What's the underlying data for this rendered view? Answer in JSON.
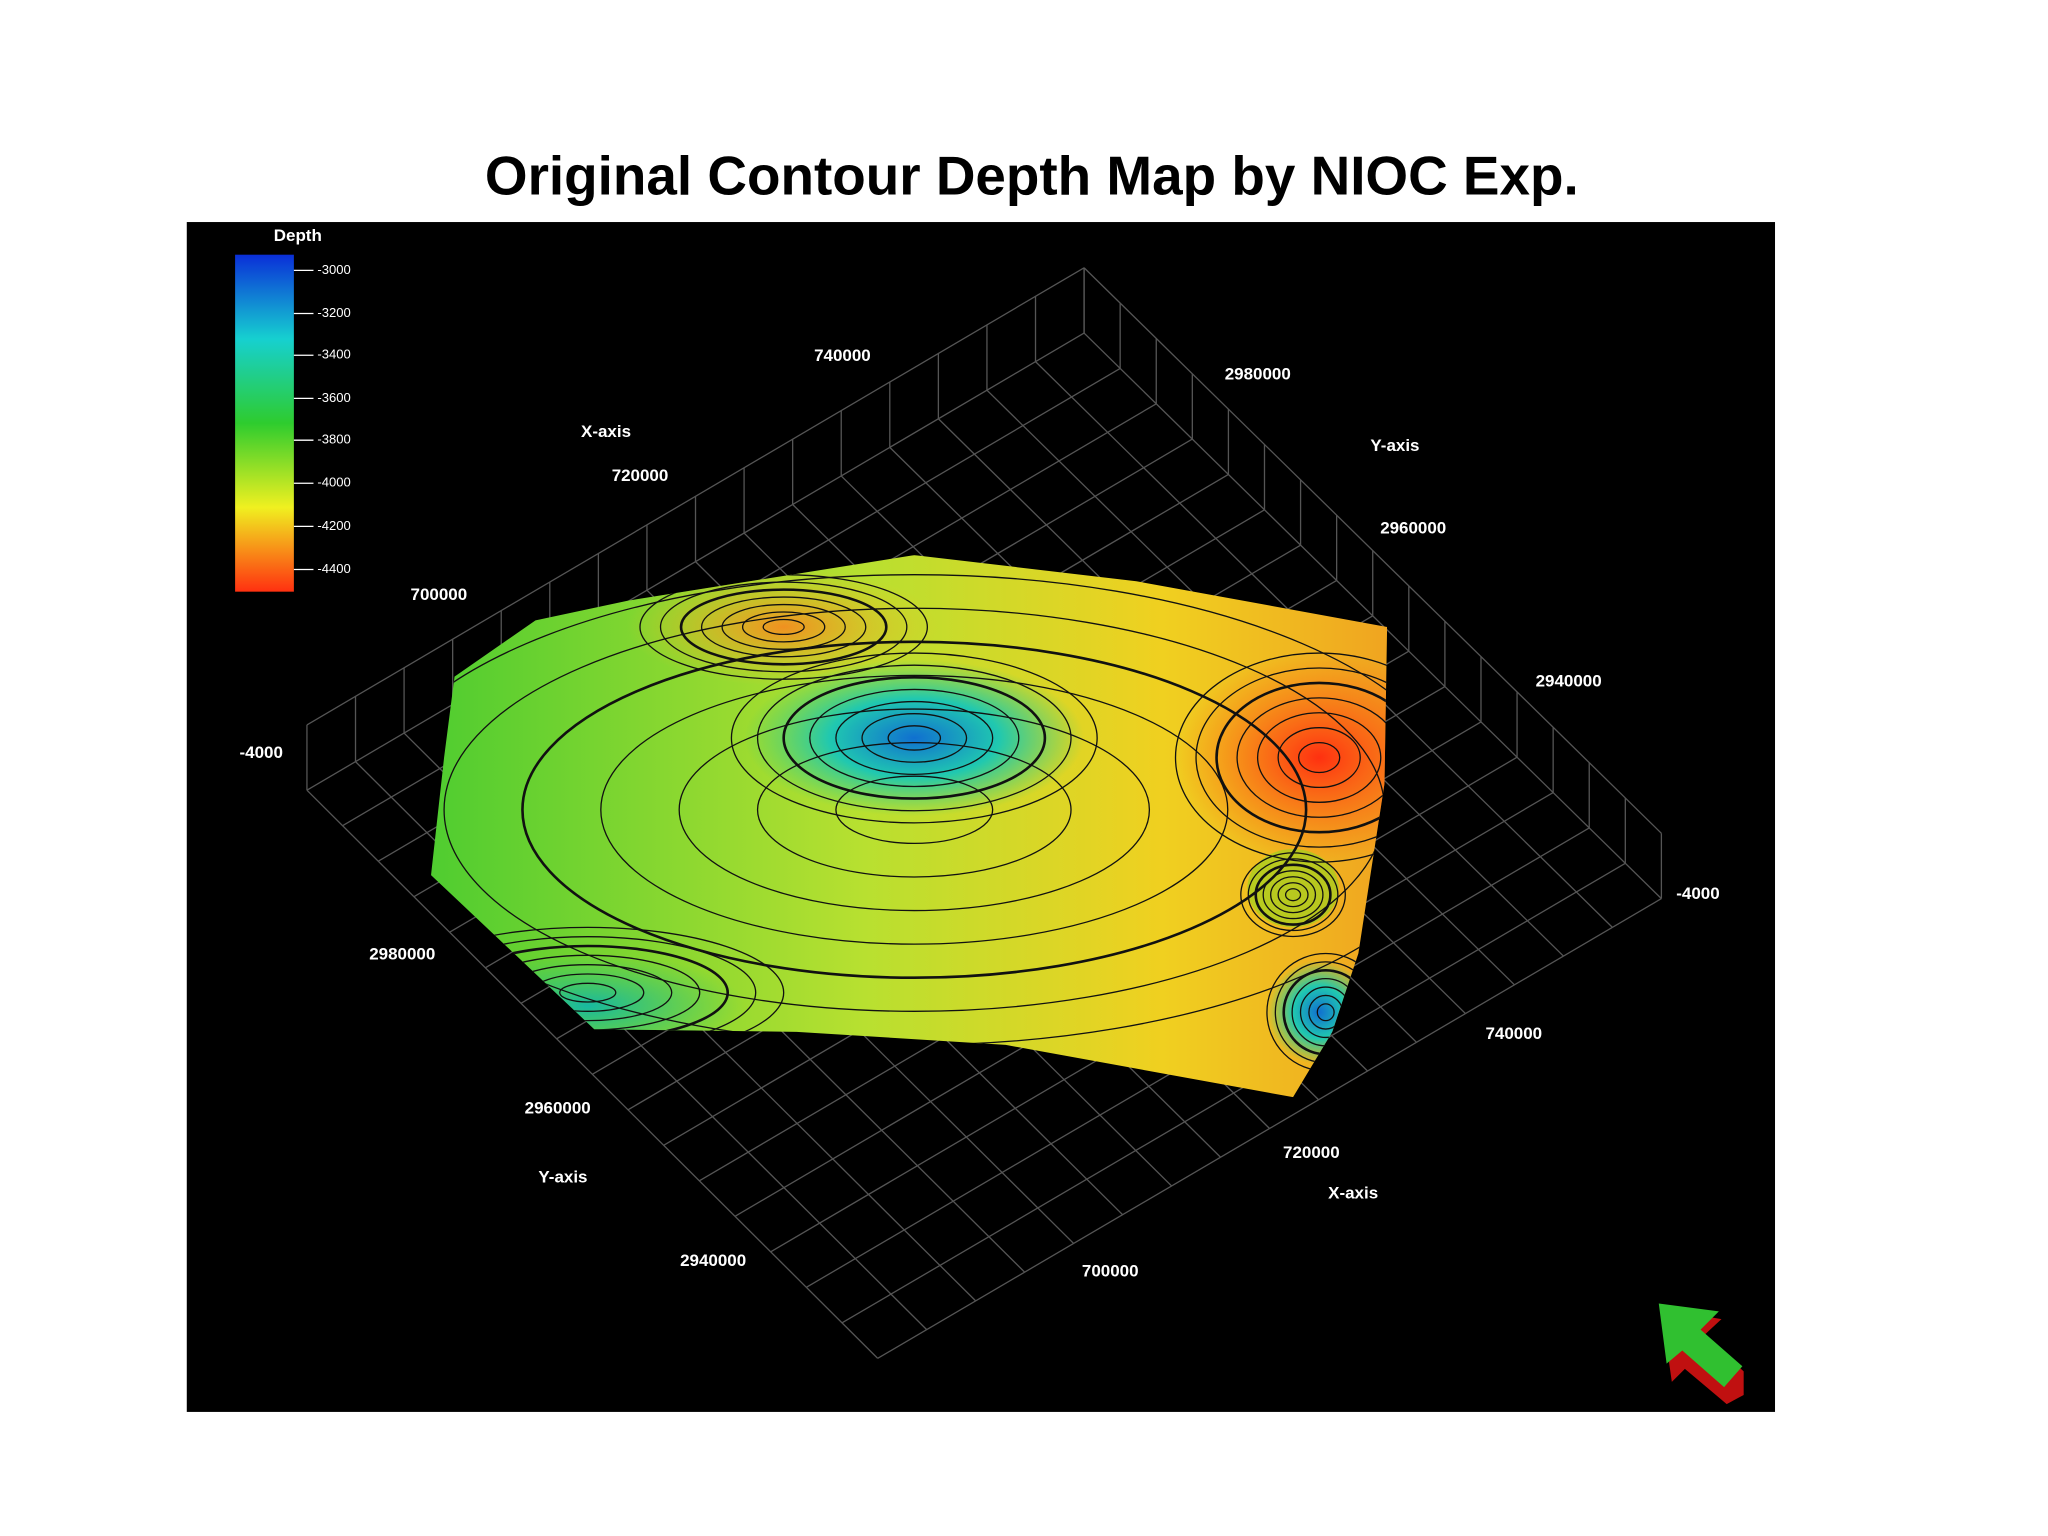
{
  "title": "Original Contour Depth Map by NIOC Exp.",
  "legend": {
    "title": "Depth",
    "ticks": [
      "-3000",
      "-3200",
      "-3400",
      "-3600",
      "-3800",
      "-4000",
      "-4200",
      "-4400"
    ]
  },
  "axis_labels": [
    "740000",
    "720000",
    "700000",
    "X-axis",
    "2980000",
    "2960000",
    "2940000",
    "Y-axis",
    "-4000",
    "-4000",
    "2980000",
    "2960000",
    "2940000",
    "Y-axis",
    "740000",
    "720000",
    "700000",
    "X-axis"
  ]
}
